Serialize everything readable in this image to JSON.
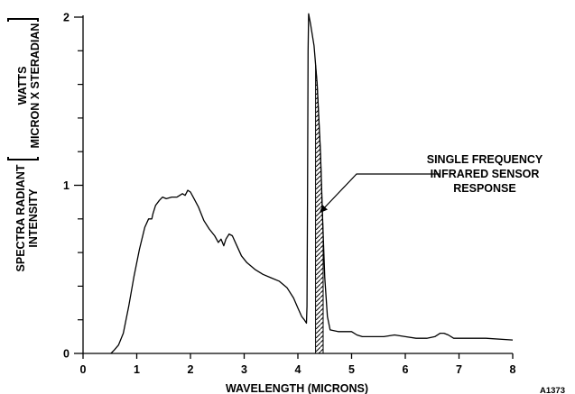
{
  "chart_data": {
    "type": "line",
    "xlabel": "WAVELENGTH (MICRONS)",
    "ylabel_lines": [
      "SPECTRA RADIANT",
      "INTENSITY"
    ],
    "ylabel_unit_lines": [
      "WATTS",
      "MICRON X STERADIAN"
    ],
    "xlim": [
      0,
      8
    ],
    "ylim": [
      0,
      2
    ],
    "x_ticks": [
      0,
      1,
      2,
      3,
      4,
      5,
      6,
      7,
      8
    ],
    "y_ticks": [
      0,
      1,
      2
    ],
    "y_minor_ticks": [
      0.2,
      0.4,
      0.6,
      0.8,
      1.2,
      1.4,
      1.6,
      1.8
    ],
    "grid": false,
    "series": [
      {
        "values_xy": [
          [
            0.52,
            0.0
          ],
          [
            0.58,
            0.02
          ],
          [
            0.66,
            0.05
          ],
          [
            0.75,
            0.12
          ],
          [
            0.85,
            0.28
          ],
          [
            0.95,
            0.46
          ],
          [
            1.05,
            0.62
          ],
          [
            1.15,
            0.75
          ],
          [
            1.22,
            0.8
          ],
          [
            1.28,
            0.8
          ],
          [
            1.3,
            0.83
          ],
          [
            1.35,
            0.88
          ],
          [
            1.42,
            0.91
          ],
          [
            1.48,
            0.93
          ],
          [
            1.55,
            0.92
          ],
          [
            1.65,
            0.93
          ],
          [
            1.75,
            0.93
          ],
          [
            1.85,
            0.95
          ],
          [
            1.9,
            0.94
          ],
          [
            1.95,
            0.97
          ],
          [
            2.0,
            0.96
          ],
          [
            2.05,
            0.93
          ],
          [
            2.15,
            0.87
          ],
          [
            2.25,
            0.79
          ],
          [
            2.35,
            0.74
          ],
          [
            2.45,
            0.7
          ],
          [
            2.52,
            0.66
          ],
          [
            2.57,
            0.68
          ],
          [
            2.62,
            0.64
          ],
          [
            2.66,
            0.68
          ],
          [
            2.72,
            0.71
          ],
          [
            2.78,
            0.7
          ],
          [
            2.85,
            0.65
          ],
          [
            2.95,
            0.58
          ],
          [
            3.05,
            0.54
          ],
          [
            3.2,
            0.5
          ],
          [
            3.35,
            0.47
          ],
          [
            3.5,
            0.45
          ],
          [
            3.65,
            0.43
          ],
          [
            3.8,
            0.39
          ],
          [
            3.92,
            0.33
          ],
          [
            4.0,
            0.27
          ],
          [
            4.07,
            0.22
          ],
          [
            4.12,
            0.2
          ],
          [
            4.16,
            0.18
          ],
          [
            4.17,
            0.28
          ],
          [
            4.18,
            0.95
          ],
          [
            4.19,
            1.8
          ],
          [
            4.2,
            2.02
          ],
          [
            4.24,
            1.95
          ],
          [
            4.3,
            1.83
          ],
          [
            4.36,
            1.6
          ],
          [
            4.42,
            1.2
          ],
          [
            4.46,
            0.8
          ],
          [
            4.5,
            0.45
          ],
          [
            4.55,
            0.22
          ],
          [
            4.6,
            0.14
          ],
          [
            4.75,
            0.13
          ],
          [
            5.0,
            0.13
          ],
          [
            5.1,
            0.11
          ],
          [
            5.2,
            0.1
          ],
          [
            5.4,
            0.1
          ],
          [
            5.6,
            0.1
          ],
          [
            5.8,
            0.11
          ],
          [
            6.0,
            0.1
          ],
          [
            6.2,
            0.09
          ],
          [
            6.4,
            0.09
          ],
          [
            6.55,
            0.1
          ],
          [
            6.65,
            0.12
          ],
          [
            6.72,
            0.12
          ],
          [
            6.8,
            0.11
          ],
          [
            6.9,
            0.09
          ],
          [
            7.0,
            0.09
          ],
          [
            7.5,
            0.09
          ],
          [
            8.0,
            0.08
          ]
        ]
      }
    ],
    "highlight_band": {
      "x_range": [
        4.33,
        4.47
      ],
      "pattern": "diagonal-hatch"
    },
    "annotation": {
      "lines": [
        "SINGLE FREQUENCY",
        "INFRARED SENSOR",
        "RESPONSE"
      ],
      "points_to_xy": [
        4.38,
        0.85
      ]
    },
    "figure_id": "A1373"
  }
}
